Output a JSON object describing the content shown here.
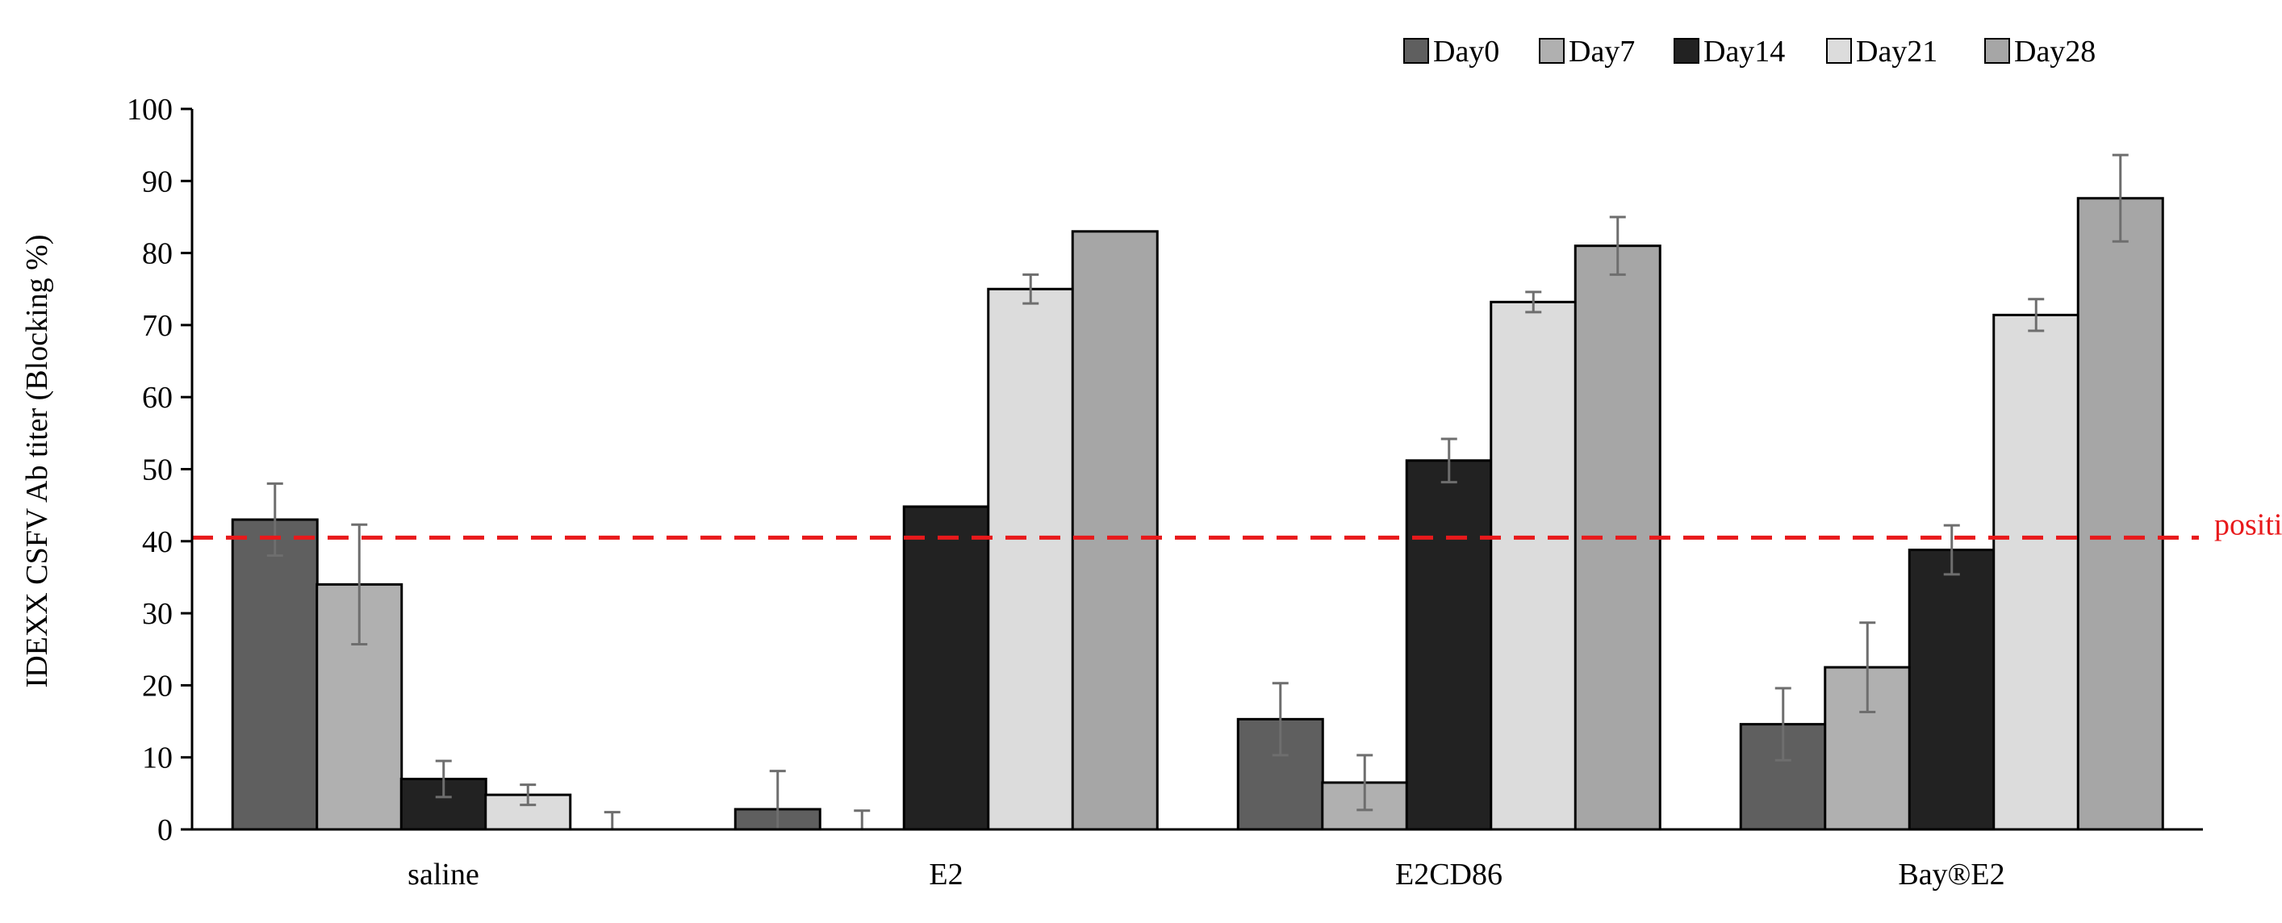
{
  "chart_data": {
    "type": "bar",
    "title": "",
    "xlabel": "",
    "ylabel": "IDEXX CSFV Ab titer (Blocking %)",
    "ylim": [
      0,
      100
    ],
    "yticks": [
      0,
      10,
      20,
      30,
      40,
      50,
      60,
      70,
      80,
      90,
      100
    ],
    "categories": [
      "saline",
      "E2",
      "E2CD86",
      "Bay®E2"
    ],
    "legend_position": "top-right",
    "series": [
      {
        "name": "Day0",
        "color": "#5f5f5f",
        "values": [
          43,
          2.8,
          15.3,
          14.6
        ],
        "errors": [
          5,
          5.3,
          5,
          5
        ]
      },
      {
        "name": "Day7",
        "color": "#b0b0b0",
        "values": [
          34,
          0,
          6.5,
          22.5
        ],
        "errors": [
          8.3,
          2.6,
          3.8,
          6.2
        ]
      },
      {
        "name": "Day14",
        "color": "#222222",
        "values": [
          7,
          44.8,
          51.2,
          38.8
        ],
        "errors": [
          2.5,
          0,
          3,
          3.4
        ]
      },
      {
        "name": "Day21",
        "color": "#dcdcdc",
        "values": [
          4.8,
          75,
          73.2,
          71.4
        ],
        "errors": [
          1.4,
          2,
          1.4,
          2.2
        ]
      },
      {
        "name": "Day28",
        "color": "#a6a6a6",
        "values": [
          0,
          83,
          81,
          87.6
        ],
        "errors": [
          2.4,
          0,
          4,
          6
        ]
      }
    ],
    "reference_line": {
      "value": 40.5,
      "label": "positive",
      "color": "#e8191b"
    }
  }
}
